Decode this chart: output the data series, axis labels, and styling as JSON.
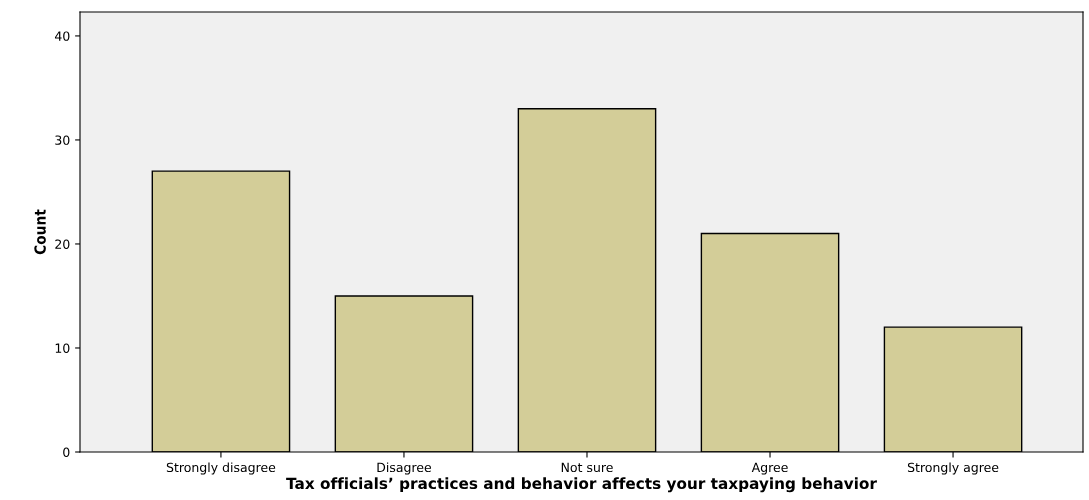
{
  "chart_data": {
    "type": "bar",
    "categories": [
      "Strongly disagree",
      "Disagree",
      "Not sure",
      "Agree",
      "Strongly agree"
    ],
    "values": [
      27,
      15,
      33,
      21,
      12
    ],
    "color": "#d3cd98",
    "xlabel": "Tax officials’ practices and behavior affects your taxpaying behavior",
    "ylabel": "Count",
    "ylim": [
      0,
      42.3
    ],
    "yticks": [
      0,
      10,
      20,
      30,
      40
    ],
    "grid": false,
    "legend": false
  }
}
